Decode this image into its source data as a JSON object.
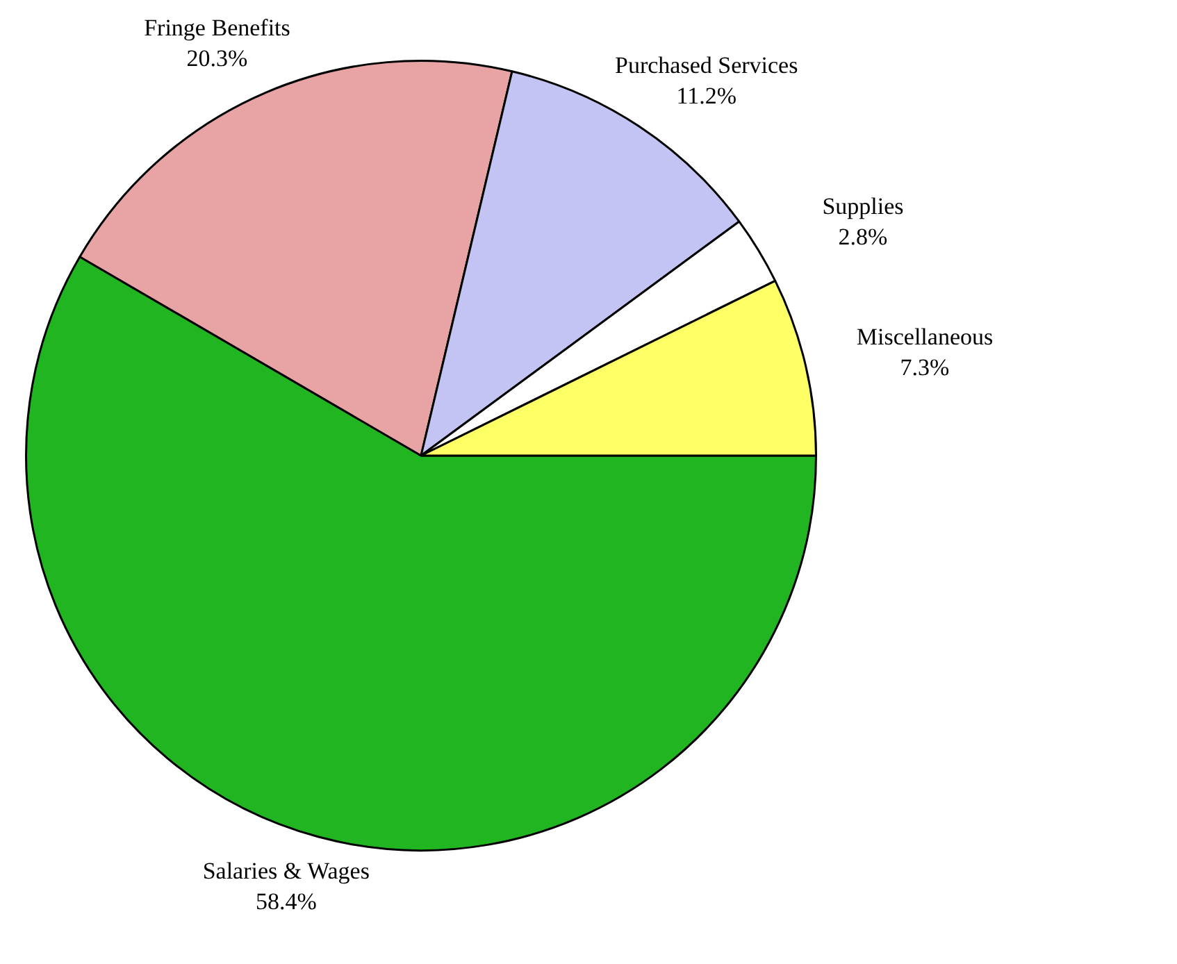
{
  "chart_data": {
    "type": "pie",
    "categories": [
      "Salaries & Wages",
      "Fringe Benefits",
      "Purchased Services",
      "Supplies",
      "Miscellaneous"
    ],
    "values": [
      58.4,
      20.3,
      11.2,
      2.8,
      7.3
    ],
    "value_labels": [
      "58.4%",
      "20.3%",
      "11.2%",
      "2.8%",
      "7.3%"
    ],
    "colors": [
      "#22b522",
      "#e8a4a4",
      "#c4c4f4",
      "#ffffff",
      "#ffff66"
    ],
    "legend": false
  }
}
